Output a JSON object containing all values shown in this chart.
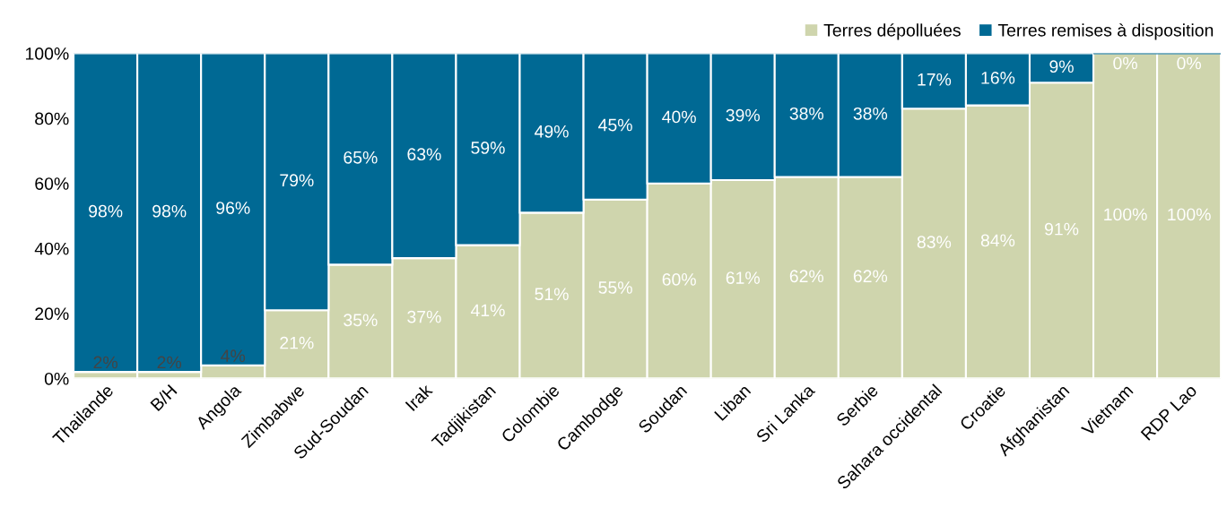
{
  "chart_data": {
    "type": "bar",
    "stacked": true,
    "legend": "top right",
    "grid": false,
    "categories": [
      "Thailande",
      "B/H",
      "Angola",
      "Zimbabwe",
      "Sud-Soudan",
      "Irak",
      "Tadjikistan",
      "Colombie",
      "Cambodge",
      "Soudan",
      "Liban",
      "Sri Lanka",
      "Serbie",
      "Sahara occidental",
      "Croatie",
      "Afghanistan",
      "Vietnam",
      "RDP Lao"
    ],
    "series": [
      {
        "name": "Terres dépolluées",
        "color": "#cfd5ad",
        "values": [
          2,
          2,
          4,
          21,
          35,
          37,
          41,
          51,
          55,
          60,
          61,
          62,
          62,
          83,
          84,
          91,
          100,
          100
        ],
        "value_labels": [
          "2%",
          "2%",
          "4%",
          "21%",
          "35%",
          "37%",
          "41%",
          "51%",
          "55%",
          "60%",
          "61%",
          "62%",
          "62%",
          "83%",
          "84%",
          "91%",
          "100%",
          "100%"
        ]
      },
      {
        "name": "Terres remises à disposition",
        "color": "#006994",
        "values": [
          98,
          98,
          96,
          79,
          65,
          63,
          59,
          49,
          45,
          40,
          39,
          38,
          38,
          17,
          16,
          9,
          0,
          0
        ],
        "value_labels": [
          "98%",
          "98%",
          "96%",
          "79%",
          "65%",
          "63%",
          "59%",
          "49%",
          "45%",
          "40%",
          "39%",
          "38%",
          "38%",
          "17%",
          "16%",
          "9%",
          "0%",
          "0%"
        ]
      }
    ],
    "ylim": [
      0,
      100
    ],
    "yticks": [
      {
        "value": 0,
        "label": "0%"
      },
      {
        "value": 20,
        "label": "20%"
      },
      {
        "value": 40,
        "label": "40%"
      },
      {
        "value": 60,
        "label": "60%"
      },
      {
        "value": 80,
        "label": "80%"
      },
      {
        "value": 100,
        "label": "100%"
      }
    ]
  }
}
